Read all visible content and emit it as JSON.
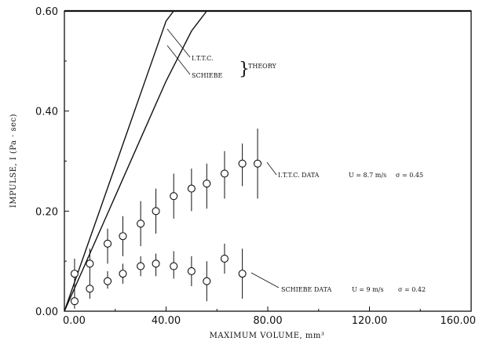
{
  "chart_data": {
    "type": "scatter",
    "xlabel": "MAXIMUM VOLUME, mm³",
    "ylabel": "IMPULSE, I (Pa · sec)",
    "xlim": [
      0,
      160
    ],
    "ylim": [
      0,
      0.6
    ],
    "x_ticks": [
      "0.00",
      "40.00",
      "80.00",
      "120.00",
      "160.00"
    ],
    "y_ticks": [
      "0.00",
      "0.20",
      "0.40",
      "0.60"
    ],
    "grid": false,
    "series": [
      {
        "name": "I.T.T.C.",
        "kind": "line",
        "x": [
          0,
          10,
          20,
          30,
          40,
          43
        ],
        "y": [
          0,
          0.145,
          0.29,
          0.435,
          0.58,
          0.6
        ]
      },
      {
        "name": "SCHIEBE",
        "kind": "line",
        "x": [
          0,
          10,
          20,
          30,
          40,
          50,
          56
        ],
        "y": [
          0,
          0.115,
          0.23,
          0.345,
          0.46,
          0.56,
          0.6
        ]
      },
      {
        "name": "I.T.T.C. DATA",
        "kind": "errorbar",
        "points": [
          {
            "x": 4,
            "y": 0.075,
            "lo": 0.045,
            "hi": 0.105
          },
          {
            "x": 10,
            "y": 0.095,
            "lo": 0.07,
            "hi": 0.125
          },
          {
            "x": 17,
            "y": 0.135,
            "lo": 0.095,
            "hi": 0.165
          },
          {
            "x": 23,
            "y": 0.15,
            "lo": 0.11,
            "hi": 0.19
          },
          {
            "x": 30,
            "y": 0.175,
            "lo": 0.13,
            "hi": 0.22
          },
          {
            "x": 36,
            "y": 0.2,
            "lo": 0.155,
            "hi": 0.245
          },
          {
            "x": 43,
            "y": 0.23,
            "lo": 0.185,
            "hi": 0.275
          },
          {
            "x": 50,
            "y": 0.245,
            "lo": 0.2,
            "hi": 0.285
          },
          {
            "x": 56,
            "y": 0.255,
            "lo": 0.205,
            "hi": 0.295
          },
          {
            "x": 63,
            "y": 0.275,
            "lo": 0.225,
            "hi": 0.32
          },
          {
            "x": 70,
            "y": 0.295,
            "lo": 0.25,
            "hi": 0.335
          },
          {
            "x": 76,
            "y": 0.295,
            "lo": 0.225,
            "hi": 0.365
          }
        ]
      },
      {
        "name": "SCHIEBE DATA",
        "kind": "errorbar",
        "points": [
          {
            "x": 4,
            "y": 0.02,
            "lo": 0.005,
            "hi": 0.05
          },
          {
            "x": 10,
            "y": 0.045,
            "lo": 0.025,
            "hi": 0.07
          },
          {
            "x": 17,
            "y": 0.06,
            "lo": 0.045,
            "hi": 0.08
          },
          {
            "x": 23,
            "y": 0.075,
            "lo": 0.055,
            "hi": 0.095
          },
          {
            "x": 30,
            "y": 0.09,
            "lo": 0.07,
            "hi": 0.11
          },
          {
            "x": 36,
            "y": 0.095,
            "lo": 0.07,
            "hi": 0.115
          },
          {
            "x": 43,
            "y": 0.09,
            "lo": 0.065,
            "hi": 0.12
          },
          {
            "x": 50,
            "y": 0.08,
            "lo": 0.05,
            "hi": 0.11
          },
          {
            "x": 56,
            "y": 0.06,
            "lo": 0.02,
            "hi": 0.1
          },
          {
            "x": 63,
            "y": 0.105,
            "lo": 0.075,
            "hi": 0.135
          },
          {
            "x": 70,
            "y": 0.075,
            "lo": 0.025,
            "hi": 0.125
          }
        ]
      }
    ],
    "annotations": {
      "theory_label": "THEORY",
      "ittc_line_label": "I.T.T.C.",
      "schiebe_line_label": "SCHIEBE",
      "ittc_data_label": "I.T.T.C. DATA",
      "ittc_data_u": "U = 8.7 m/s",
      "ittc_data_sigma": "σ = 0.45",
      "schiebe_data_label": "SCHIEBE DATA",
      "schiebe_data_u": "U = 9 m/s",
      "schiebe_data_sigma": "σ = 0.42"
    }
  }
}
